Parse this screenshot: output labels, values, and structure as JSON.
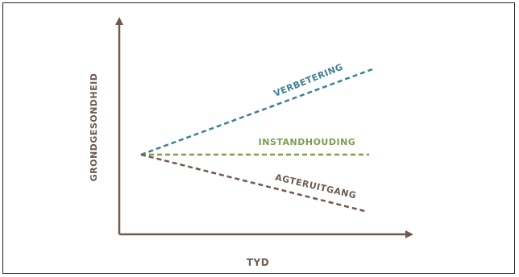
{
  "diagram": {
    "y_axis_label": "GRONDGESONDHEID",
    "x_axis_label": "TYD",
    "trends": [
      {
        "key": "improvement",
        "label": "VERBETERING",
        "color": "#3f7f95"
      },
      {
        "key": "maintenance",
        "label": "INSTANDHOUDING",
        "color": "#7f9c52"
      },
      {
        "key": "decline",
        "label": "AGTERUITGANG",
        "color": "#6e5a4e"
      }
    ],
    "axis_color": "#6e5a4e"
  }
}
